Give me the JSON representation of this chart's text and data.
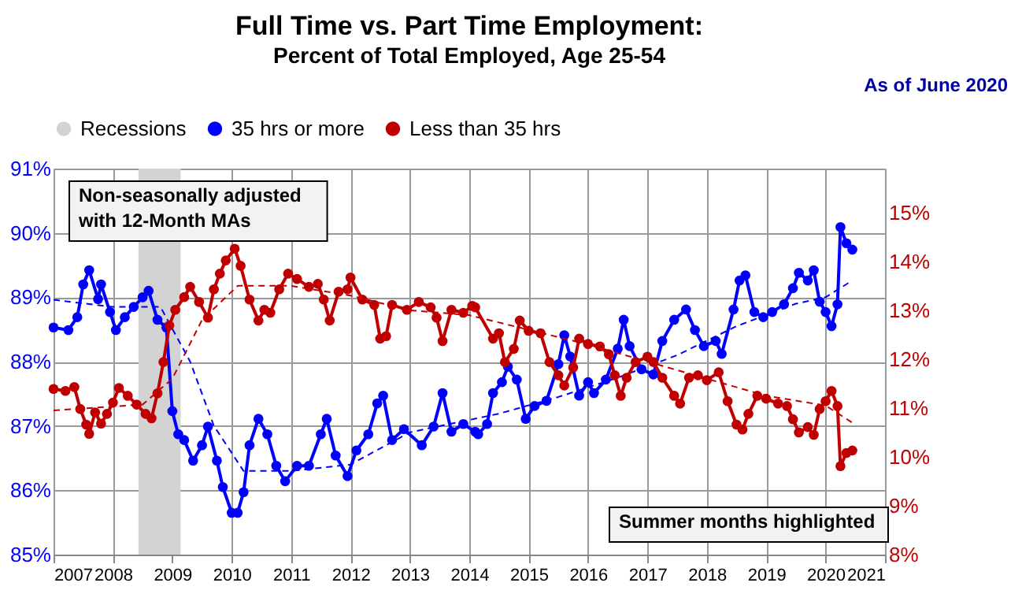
{
  "chart_data": {
    "type": "line",
    "title": "Full Time vs. Part Time Employment:",
    "subtitle": "Percent of Total Employed, Age 25-54",
    "annotations": [
      "Non-seasonally adjusted\nwith 12-Month MAs",
      "Summer months highlighted",
      "As of June 2020"
    ],
    "legend": "top",
    "grid": true,
    "xlim": [
      2007,
      2021
    ],
    "xticks": [
      2007,
      2008,
      2009,
      2010,
      2011,
      2012,
      2013,
      2014,
      2015,
      2016,
      2017,
      2018,
      2019,
      2020,
      2021
    ],
    "ylim": [
      85,
      91
    ],
    "yticks": [
      {
        "value": 85,
        "label": "85%"
      },
      {
        "value": 86,
        "label": "86%"
      },
      {
        "value": 87,
        "label": "87%"
      },
      {
        "value": 88,
        "label": "88%"
      },
      {
        "value": 89,
        "label": "89%"
      },
      {
        "value": 90,
        "label": "90%"
      },
      {
        "value": 91,
        "label": "91%"
      }
    ],
    "y2lim": [
      8,
      15.9
    ],
    "y2ticks": [
      {
        "value": 8,
        "label": "8%"
      },
      {
        "value": 9,
        "label": "9%"
      },
      {
        "value": 10,
        "label": "10%"
      },
      {
        "value": 11,
        "label": "11%"
      },
      {
        "value": 12,
        "label": "12%"
      },
      {
        "value": 13,
        "label": "13%"
      },
      {
        "value": 14,
        "label": "14%"
      },
      {
        "value": 15,
        "label": "15%"
      }
    ],
    "bands": [
      {
        "axis": "x",
        "from": 2008.43,
        "to": 2009.14,
        "label": "Recessions",
        "color": "#d3d3d3"
      }
    ],
    "series": [
      {
        "name": "35 hrs or more",
        "color": "#0000ff",
        "marker": "circle",
        "axis": "y",
        "x": [
          2007.0,
          2007.25,
          2007.4,
          2007.5,
          2007.6,
          2007.75,
          2007.8,
          2007.95,
          2008.05,
          2008.2,
          2008.35,
          2008.5,
          2008.6,
          2008.75,
          2008.9,
          2009.0,
          2009.1,
          2009.2,
          2009.35,
          2009.5,
          2009.6,
          2009.75,
          2009.85,
          2010.0,
          2010.1,
          2010.2,
          2010.3,
          2010.45,
          2010.6,
          2010.75,
          2010.9,
          2011.1,
          2011.3,
          2011.5,
          2011.6,
          2011.75,
          2011.95,
          2012.1,
          2012.3,
          2012.45,
          2012.55,
          2012.7,
          2012.9,
          2013.2,
          2013.4,
          2013.55,
          2013.7,
          2013.9,
          2014.1,
          2014.15,
          2014.3,
          2014.4,
          2014.55,
          2014.65,
          2014.8,
          2014.95,
          2015.1,
          2015.3,
          2015.5,
          2015.6,
          2015.7,
          2015.85,
          2016.0,
          2016.1,
          2016.3,
          2016.5,
          2016.6,
          2016.7,
          2016.9,
          2017.1,
          2017.25,
          2017.45,
          2017.65,
          2017.8,
          2017.95,
          2018.15,
          2018.25,
          2018.45,
          2018.55,
          2018.65,
          2018.8,
          2018.95,
          2019.1,
          2019.3,
          2019.45,
          2019.55,
          2019.7,
          2019.8,
          2019.9,
          2020.0,
          2020.1,
          2020.2,
          2020.25,
          2020.35,
          2020.45
        ],
        "values": [
          88.53,
          88.49,
          88.69,
          89.2,
          89.42,
          88.97,
          89.2,
          88.77,
          88.49,
          88.69,
          88.85,
          89.0,
          89.1,
          88.65,
          88.53,
          87.23,
          86.87,
          86.78,
          86.46,
          86.7,
          86.99,
          86.46,
          86.05,
          85.65,
          85.65,
          85.97,
          86.7,
          87.11,
          86.87,
          86.38,
          86.14,
          86.38,
          86.38,
          86.87,
          87.11,
          86.54,
          86.22,
          86.62,
          86.87,
          87.35,
          87.47,
          86.78,
          86.95,
          86.7,
          86.99,
          87.51,
          86.91,
          87.03,
          86.91,
          86.87,
          87.03,
          87.51,
          87.68,
          87.92,
          87.72,
          87.11,
          87.31,
          87.39,
          87.96,
          88.41,
          88.08,
          87.47,
          87.68,
          87.51,
          87.72,
          88.2,
          88.65,
          88.24,
          87.88,
          87.8,
          88.32,
          88.65,
          88.81,
          88.49,
          88.24,
          88.32,
          88.12,
          88.81,
          89.26,
          89.34,
          88.77,
          88.69,
          88.77,
          88.89,
          89.14,
          89.38,
          89.26,
          89.42,
          88.93,
          88.77,
          88.55,
          88.89,
          90.09,
          89.84,
          89.74
        ]
      },
      {
        "name": "Less than 35 hrs",
        "color": "#c00000",
        "marker": "circle",
        "axis": "y2",
        "x": [
          2007.0,
          2007.2,
          2007.35,
          2007.45,
          2007.55,
          2007.6,
          2007.7,
          2007.8,
          2007.9,
          2008.0,
          2008.1,
          2008.25,
          2008.4,
          2008.55,
          2008.65,
          2008.75,
          2008.85,
          2008.95,
          2009.05,
          2009.2,
          2009.3,
          2009.45,
          2009.6,
          2009.7,
          2009.8,
          2009.9,
          2010.05,
          2010.15,
          2010.3,
          2010.45,
          2010.55,
          2010.65,
          2010.8,
          2010.95,
          2011.1,
          2011.3,
          2011.45,
          2011.55,
          2011.65,
          2011.8,
          2011.95,
          2012.0,
          2012.2,
          2012.4,
          2012.5,
          2012.6,
          2012.7,
          2012.95,
          2013.15,
          2013.35,
          2013.45,
          2013.55,
          2013.7,
          2013.9,
          2014.05,
          2014.1,
          2014.4,
          2014.5,
          2014.6,
          2014.75,
          2014.85,
          2015.0,
          2015.2,
          2015.35,
          2015.5,
          2015.6,
          2015.75,
          2015.85,
          2016.0,
          2016.2,
          2016.35,
          2016.45,
          2016.55,
          2016.65,
          2016.8,
          2017.0,
          2017.1,
          2017.25,
          2017.45,
          2017.55,
          2017.7,
          2017.85,
          2018.0,
          2018.2,
          2018.35,
          2018.5,
          2018.6,
          2018.7,
          2018.85,
          2019.0,
          2019.2,
          2019.35,
          2019.45,
          2019.55,
          2019.7,
          2019.8,
          2019.9,
          2020.0,
          2020.1,
          2020.2,
          2020.25,
          2020.35,
          2020.45
        ],
        "values": [
          11.39,
          11.35,
          11.43,
          10.98,
          10.66,
          10.47,
          10.91,
          10.68,
          10.88,
          11.11,
          11.41,
          11.25,
          11.07,
          10.88,
          10.79,
          11.3,
          11.94,
          12.69,
          13.01,
          13.27,
          13.48,
          13.17,
          12.85,
          13.43,
          13.75,
          14.02,
          14.26,
          13.91,
          13.22,
          12.79,
          13.01,
          12.95,
          13.43,
          13.75,
          13.64,
          13.48,
          13.54,
          13.22,
          12.79,
          13.38,
          13.43,
          13.67,
          13.22,
          13.11,
          12.42,
          12.47,
          13.11,
          13.01,
          13.17,
          13.06,
          12.85,
          12.37,
          13.01,
          12.95,
          13.09,
          13.06,
          12.42,
          12.53,
          11.94,
          12.21,
          12.79,
          12.58,
          12.53,
          11.94,
          11.67,
          11.46,
          11.83,
          12.42,
          12.31,
          12.26,
          12.1,
          11.67,
          11.25,
          11.62,
          11.94,
          12.05,
          11.94,
          11.62,
          11.25,
          11.09,
          11.62,
          11.67,
          11.57,
          11.73,
          11.14,
          10.66,
          10.56,
          10.88,
          11.25,
          11.19,
          11.09,
          11.04,
          10.77,
          10.5,
          10.61,
          10.45,
          10.98,
          11.14,
          11.35,
          11.04,
          9.81,
          10.08,
          10.13
        ]
      },
      {
        "color": "#0000ff",
        "marker": "none",
        "line_style": "dashed",
        "axis": "y",
        "x": [
          2007.0,
          2008.0,
          2008.8,
          2009.3,
          2009.7,
          2010.2,
          2011.0,
          2012.0,
          2013.0,
          2014.5,
          2015.5,
          2016.5,
          2017.5,
          2018.5,
          2019.5,
          2020.0,
          2020.45
        ],
        "values": [
          88.96,
          88.85,
          88.85,
          88.0,
          87.0,
          86.3,
          86.3,
          86.4,
          86.9,
          87.19,
          87.45,
          87.75,
          88.1,
          88.55,
          88.9,
          89.0,
          89.26
        ]
      },
      {
        "color": "#c00000",
        "marker": "none",
        "line_style": "dashed",
        "axis": "y2",
        "x": [
          2007.0,
          2008.5,
          2009.0,
          2009.5,
          2010.1,
          2011.0,
          2012.0,
          2013.0,
          2014.0,
          2015.0,
          2016.0,
          2017.0,
          2018.0,
          2019.0,
          2020.0,
          2020.45
        ],
        "values": [
          10.95,
          11.07,
          11.6,
          12.8,
          13.5,
          13.5,
          13.3,
          13.0,
          12.9,
          12.6,
          12.3,
          11.95,
          11.6,
          11.25,
          11.05,
          10.7
        ]
      }
    ]
  }
}
